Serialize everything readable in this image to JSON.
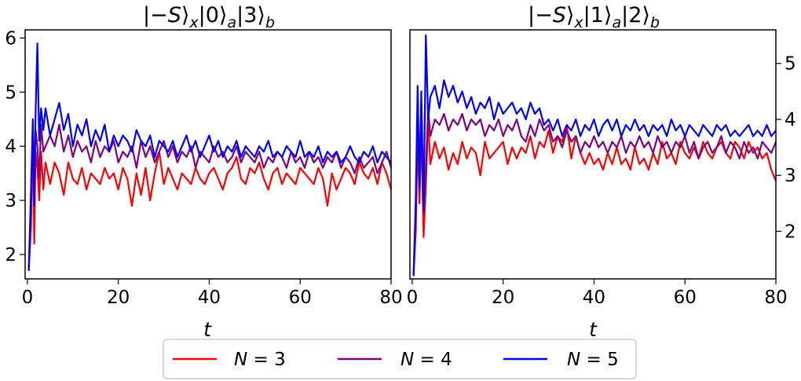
{
  "chart_data": [
    {
      "type": "line",
      "title_parts": [
        "|−",
        "S",
        "⟩",
        "x",
        "|0⟩",
        "a",
        "|3⟩",
        "b"
      ],
      "xlabel": "t",
      "ylabel": "",
      "xlim": [
        -0.5,
        80
      ],
      "ylim": [
        1.55,
        6.15
      ],
      "xticks": [
        0,
        20,
        40,
        60,
        80
      ],
      "yticks": [
        2,
        3,
        4,
        5,
        6
      ],
      "ytick_side": "left",
      "series": [
        {
          "name": "N = 3",
          "color": "#ff0000",
          "x": [
            0.3,
            0.8,
            1.2,
            1.5,
            1.8,
            2.2,
            2.6,
            3.0,
            3.5,
            4.0,
            5,
            6,
            7,
            8,
            9,
            10,
            11,
            12,
            13,
            14,
            15,
            16,
            17,
            18,
            19,
            20,
            21,
            22,
            23,
            24,
            25,
            26,
            27,
            28,
            29,
            30,
            31,
            32,
            33,
            34,
            35,
            36,
            37,
            38,
            39,
            40,
            41,
            42,
            43,
            44,
            45,
            46,
            47,
            48,
            49,
            50,
            51,
            52,
            53,
            54,
            55,
            56,
            57,
            58,
            59,
            60,
            61,
            62,
            63,
            64,
            65,
            66,
            67,
            68,
            69,
            70,
            71,
            72,
            73,
            74,
            75,
            76,
            77,
            78,
            79,
            80
          ],
          "values": [
            1.7,
            2.5,
            4.2,
            2.2,
            3.9,
            3.6,
            3.0,
            3.9,
            3.2,
            3.7,
            3.3,
            3.7,
            3.5,
            3.1,
            3.7,
            3.4,
            3.3,
            3.6,
            3.2,
            3.5,
            3.4,
            3.3,
            3.6,
            3.4,
            3.5,
            3.2,
            3.6,
            3.4,
            2.9,
            3.5,
            3.1,
            3.6,
            3.0,
            3.5,
            3.9,
            3.3,
            3.6,
            3.4,
            3.2,
            3.5,
            3.4,
            3.3,
            3.6,
            3.4,
            3.3,
            3.5,
            3.6,
            3.4,
            3.2,
            3.5,
            3.6,
            3.8,
            3.4,
            3.3,
            3.6,
            3.5,
            3.7,
            3.4,
            3.2,
            3.5,
            3.6,
            3.3,
            3.5,
            3.4,
            3.3,
            3.6,
            3.5,
            3.4,
            3.3,
            3.6,
            3.4,
            2.9,
            3.5,
            3.2,
            3.4,
            3.6,
            3.5,
            3.3,
            3.7,
            3.5,
            3.4,
            3.6,
            3.3,
            3.7,
            3.5,
            3.2
          ]
        },
        {
          "name": "N = 4",
          "color": "#800080",
          "x": [
            0.3,
            0.8,
            1.2,
            1.5,
            1.8,
            2.2,
            2.6,
            3.0,
            3.5,
            4.0,
            5,
            6,
            7,
            8,
            9,
            10,
            11,
            12,
            13,
            14,
            15,
            16,
            17,
            18,
            19,
            20,
            21,
            22,
            23,
            24,
            25,
            26,
            27,
            28,
            29,
            30,
            31,
            32,
            33,
            34,
            35,
            36,
            37,
            38,
            39,
            40,
            41,
            42,
            43,
            44,
            45,
            46,
            47,
            48,
            49,
            50,
            51,
            52,
            53,
            54,
            55,
            56,
            57,
            58,
            59,
            60,
            61,
            62,
            63,
            64,
            65,
            66,
            67,
            68,
            69,
            70,
            71,
            72,
            73,
            74,
            75,
            76,
            77,
            78,
            79,
            80
          ],
          "values": [
            1.7,
            2.8,
            4.4,
            3.0,
            4.3,
            4.0,
            3.4,
            4.4,
            3.9,
            4.0,
            4.2,
            4.0,
            4.4,
            3.9,
            4.2,
            3.8,
            4.1,
            3.9,
            4.0,
            3.7,
            4.1,
            3.8,
            4.0,
            3.9,
            4.1,
            3.7,
            3.9,
            3.8,
            4.0,
            3.6,
            4.1,
            3.8,
            4.0,
            3.7,
            3.9,
            4.1,
            3.8,
            4.0,
            3.7,
            3.9,
            3.8,
            4.0,
            3.6,
            3.9,
            3.8,
            3.7,
            4.0,
            3.8,
            3.9,
            3.7,
            3.8,
            4.0,
            3.7,
            3.9,
            3.8,
            3.7,
            3.9,
            3.6,
            3.8,
            3.7,
            3.9,
            3.8,
            3.6,
            3.9,
            3.7,
            3.8,
            3.6,
            3.9,
            3.7,
            3.8,
            3.6,
            3.8,
            3.7,
            3.9,
            3.6,
            3.8,
            3.7,
            3.5,
            3.8,
            3.6,
            3.7,
            3.8,
            3.5,
            3.7,
            3.9,
            3.6
          ]
        },
        {
          "name": "N = 5",
          "color": "#0000ff",
          "x": [
            0.3,
            0.8,
            1.2,
            1.5,
            1.8,
            2.2,
            2.6,
            3.0,
            3.5,
            4.0,
            5,
            6,
            7,
            8,
            9,
            10,
            11,
            12,
            13,
            14,
            15,
            16,
            17,
            18,
            19,
            20,
            21,
            22,
            23,
            24,
            25,
            26,
            27,
            28,
            29,
            30,
            31,
            32,
            33,
            34,
            35,
            36,
            37,
            38,
            39,
            40,
            41,
            42,
            43,
            44,
            45,
            46,
            47,
            48,
            49,
            50,
            51,
            52,
            53,
            54,
            55,
            56,
            57,
            58,
            59,
            60,
            61,
            62,
            63,
            64,
            65,
            66,
            67,
            68,
            69,
            70,
            71,
            72,
            73,
            74,
            75,
            76,
            77,
            78,
            79,
            80
          ],
          "values": [
            1.7,
            3.2,
            4.5,
            2.9,
            4.6,
            5.9,
            4.1,
            4.7,
            4.3,
            4.7,
            4.2,
            4.5,
            4.8,
            4.3,
            4.6,
            4.0,
            4.4,
            4.2,
            4.5,
            4.0,
            4.3,
            4.1,
            4.4,
            3.9,
            4.2,
            4.0,
            4.2,
            4.1,
            3.9,
            4.3,
            4.1,
            4.0,
            4.2,
            3.8,
            4.1,
            4.0,
            3.9,
            4.1,
            3.8,
            4.0,
            4.2,
            3.9,
            4.1,
            3.8,
            4.0,
            4.2,
            3.9,
            4.1,
            3.8,
            4.0,
            3.9,
            4.1,
            3.8,
            4.0,
            3.9,
            3.8,
            4.0,
            3.9,
            4.1,
            3.8,
            3.9,
            3.8,
            4.0,
            3.9,
            3.8,
            4.1,
            3.8,
            3.9,
            3.8,
            4.0,
            3.7,
            3.9,
            3.8,
            3.9,
            3.7,
            3.8,
            4.0,
            3.8,
            3.7,
            3.9,
            3.8,
            4.0,
            3.7,
            3.9,
            3.8,
            3.7
          ]
        }
      ]
    },
    {
      "type": "line",
      "title_parts": [
        "|−",
        "S",
        "⟩",
        "x",
        "|1⟩",
        "a",
        "|2⟩",
        "b"
      ],
      "xlabel": "t",
      "ylabel": "",
      "xlim": [
        -0.5,
        80
      ],
      "ylim": [
        1.15,
        5.6
      ],
      "xticks": [
        0,
        20,
        40,
        60,
        80
      ],
      "yticks": [
        2,
        3,
        4,
        5
      ],
      "ytick_side": "right",
      "series": [
        {
          "name": "N = 3",
          "color": "#ff0000",
          "x": [
            0.3,
            0.8,
            1.2,
            1.6,
            2.0,
            2.5,
            3.0,
            3.5,
            4,
            5,
            6,
            7,
            8,
            9,
            10,
            11,
            12,
            13,
            14,
            15,
            16,
            17,
            18,
            19,
            20,
            21,
            22,
            23,
            24,
            25,
            26,
            27,
            28,
            29,
            30,
            31,
            32,
            33,
            34,
            35,
            36,
            37,
            38,
            39,
            40,
            41,
            42,
            43,
            44,
            45,
            46,
            47,
            48,
            49,
            50,
            51,
            52,
            53,
            54,
            55,
            56,
            57,
            58,
            59,
            60,
            61,
            62,
            63,
            64,
            65,
            66,
            67,
            68,
            69,
            70,
            71,
            72,
            73,
            74,
            75,
            76,
            77,
            78,
            79,
            80
          ],
          "values": [
            1.2,
            2.0,
            3.8,
            2.5,
            3.9,
            1.9,
            2.8,
            4.0,
            3.2,
            3.6,
            3.3,
            3.5,
            3.1,
            3.4,
            3.2,
            3.6,
            3.3,
            3.5,
            3.4,
            3.0,
            3.6,
            3.3,
            3.4,
            3.5,
            3.6,
            3.2,
            3.5,
            3.3,
            3.5,
            3.4,
            3.7,
            3.3,
            3.6,
            3.5,
            3.8,
            3.4,
            3.7,
            3.6,
            3.9,
            3.3,
            3.7,
            3.4,
            3.2,
            3.4,
            3.2,
            3.3,
            3.1,
            3.4,
            3.2,
            3.5,
            3.2,
            3.3,
            3.1,
            3.5,
            3.2,
            3.3,
            3.1,
            3.4,
            3.2,
            3.6,
            3.3,
            3.4,
            3.2,
            3.6,
            3.4,
            3.3,
            3.5,
            3.3,
            3.6,
            3.4,
            3.3,
            3.5,
            3.6,
            3.4,
            3.3,
            3.6,
            3.5,
            3.3,
            3.6,
            3.4,
            3.5,
            3.3,
            3.4,
            3.1,
            2.9
          ]
        },
        {
          "name": "N = 4",
          "color": "#800080",
          "x": [
            0.3,
            0.8,
            1.2,
            1.6,
            2.0,
            2.5,
            3.0,
            3.5,
            4,
            5,
            6,
            7,
            8,
            9,
            10,
            11,
            12,
            13,
            14,
            15,
            16,
            17,
            18,
            19,
            20,
            21,
            22,
            23,
            24,
            25,
            26,
            27,
            28,
            29,
            30,
            31,
            32,
            33,
            34,
            35,
            36,
            37,
            38,
            39,
            40,
            41,
            42,
            43,
            44,
            45,
            46,
            47,
            48,
            49,
            50,
            51,
            52,
            53,
            54,
            55,
            56,
            57,
            58,
            59,
            60,
            61,
            62,
            63,
            64,
            65,
            66,
            67,
            68,
            69,
            70,
            71,
            72,
            73,
            74,
            75,
            76,
            77,
            78,
            79,
            80
          ],
          "values": [
            1.2,
            2.3,
            4.0,
            2.7,
            4.1,
            2.3,
            3.1,
            4.2,
            3.7,
            4.0,
            3.9,
            4.1,
            3.8,
            4.0,
            3.9,
            4.1,
            3.8,
            4.0,
            3.9,
            4.0,
            3.7,
            3.9,
            3.8,
            4.0,
            3.7,
            3.9,
            3.8,
            4.0,
            3.7,
            3.6,
            3.9,
            3.7,
            4.0,
            3.8,
            3.9,
            3.6,
            3.7,
            3.5,
            3.8,
            3.6,
            3.7,
            3.4,
            3.6,
            3.5,
            3.7,
            3.5,
            3.6,
            3.4,
            3.6,
            3.5,
            3.7,
            3.4,
            3.6,
            3.5,
            3.7,
            3.5,
            3.6,
            3.4,
            3.7,
            3.5,
            3.6,
            3.4,
            3.6,
            3.5,
            3.7,
            3.4,
            3.6,
            3.3,
            3.5,
            3.6,
            3.4,
            3.5,
            3.7,
            3.4,
            3.6,
            3.5,
            3.3,
            3.6,
            3.4,
            3.5,
            3.3,
            3.6,
            3.5,
            3.4,
            3.6
          ]
        },
        {
          "name": "N = 5",
          "color": "#0000ff",
          "x": [
            0.3,
            0.8,
            1.2,
            1.6,
            2.0,
            2.5,
            3.0,
            3.5,
            4,
            5,
            6,
            7,
            8,
            9,
            10,
            11,
            12,
            13,
            14,
            15,
            16,
            17,
            18,
            19,
            20,
            21,
            22,
            23,
            24,
            25,
            26,
            27,
            28,
            29,
            30,
            31,
            32,
            33,
            34,
            35,
            36,
            37,
            38,
            39,
            40,
            41,
            42,
            43,
            44,
            45,
            46,
            47,
            48,
            49,
            50,
            51,
            52,
            53,
            54,
            55,
            56,
            57,
            58,
            59,
            60,
            61,
            62,
            63,
            64,
            65,
            66,
            67,
            68,
            69,
            70,
            71,
            72,
            73,
            74,
            75,
            76,
            77,
            78,
            79,
            80
          ],
          "values": [
            1.2,
            2.6,
            4.6,
            2.8,
            4.5,
            2.4,
            5.5,
            4.0,
            4.4,
            4.6,
            4.2,
            4.7,
            4.4,
            4.6,
            4.3,
            4.5,
            4.2,
            4.4,
            4.1,
            4.3,
            4.2,
            4.4,
            4.0,
            4.3,
            4.1,
            4.2,
            4.3,
            4.1,
            4.2,
            4.0,
            4.3,
            4.1,
            4.2,
            3.9,
            4.0,
            3.8,
            4.0,
            3.7,
            3.9,
            3.8,
            4.0,
            3.7,
            3.9,
            3.8,
            4.0,
            3.7,
            3.9,
            4.0,
            3.8,
            4.0,
            3.7,
            3.9,
            3.8,
            4.0,
            3.8,
            3.9,
            3.7,
            3.9,
            3.8,
            3.9,
            3.7,
            4.0,
            3.8,
            3.9,
            3.7,
            3.9,
            3.8,
            3.7,
            3.9,
            3.8,
            3.7,
            3.9,
            3.8,
            3.9,
            3.7,
            3.8,
            3.7,
            3.8,
            3.9,
            3.7,
            3.8,
            3.7,
            3.9,
            3.7,
            3.8
          ]
        }
      ]
    }
  ],
  "legend": {
    "placement": "bottom-center",
    "entries": [
      {
        "prefix": "N",
        "suffix": " = 3",
        "color": "#ff0000"
      },
      {
        "prefix": "N",
        "suffix": " = 4",
        "color": "#800080"
      },
      {
        "prefix": "N",
        "suffix": " = 5",
        "color": "#0000ff"
      }
    ]
  }
}
